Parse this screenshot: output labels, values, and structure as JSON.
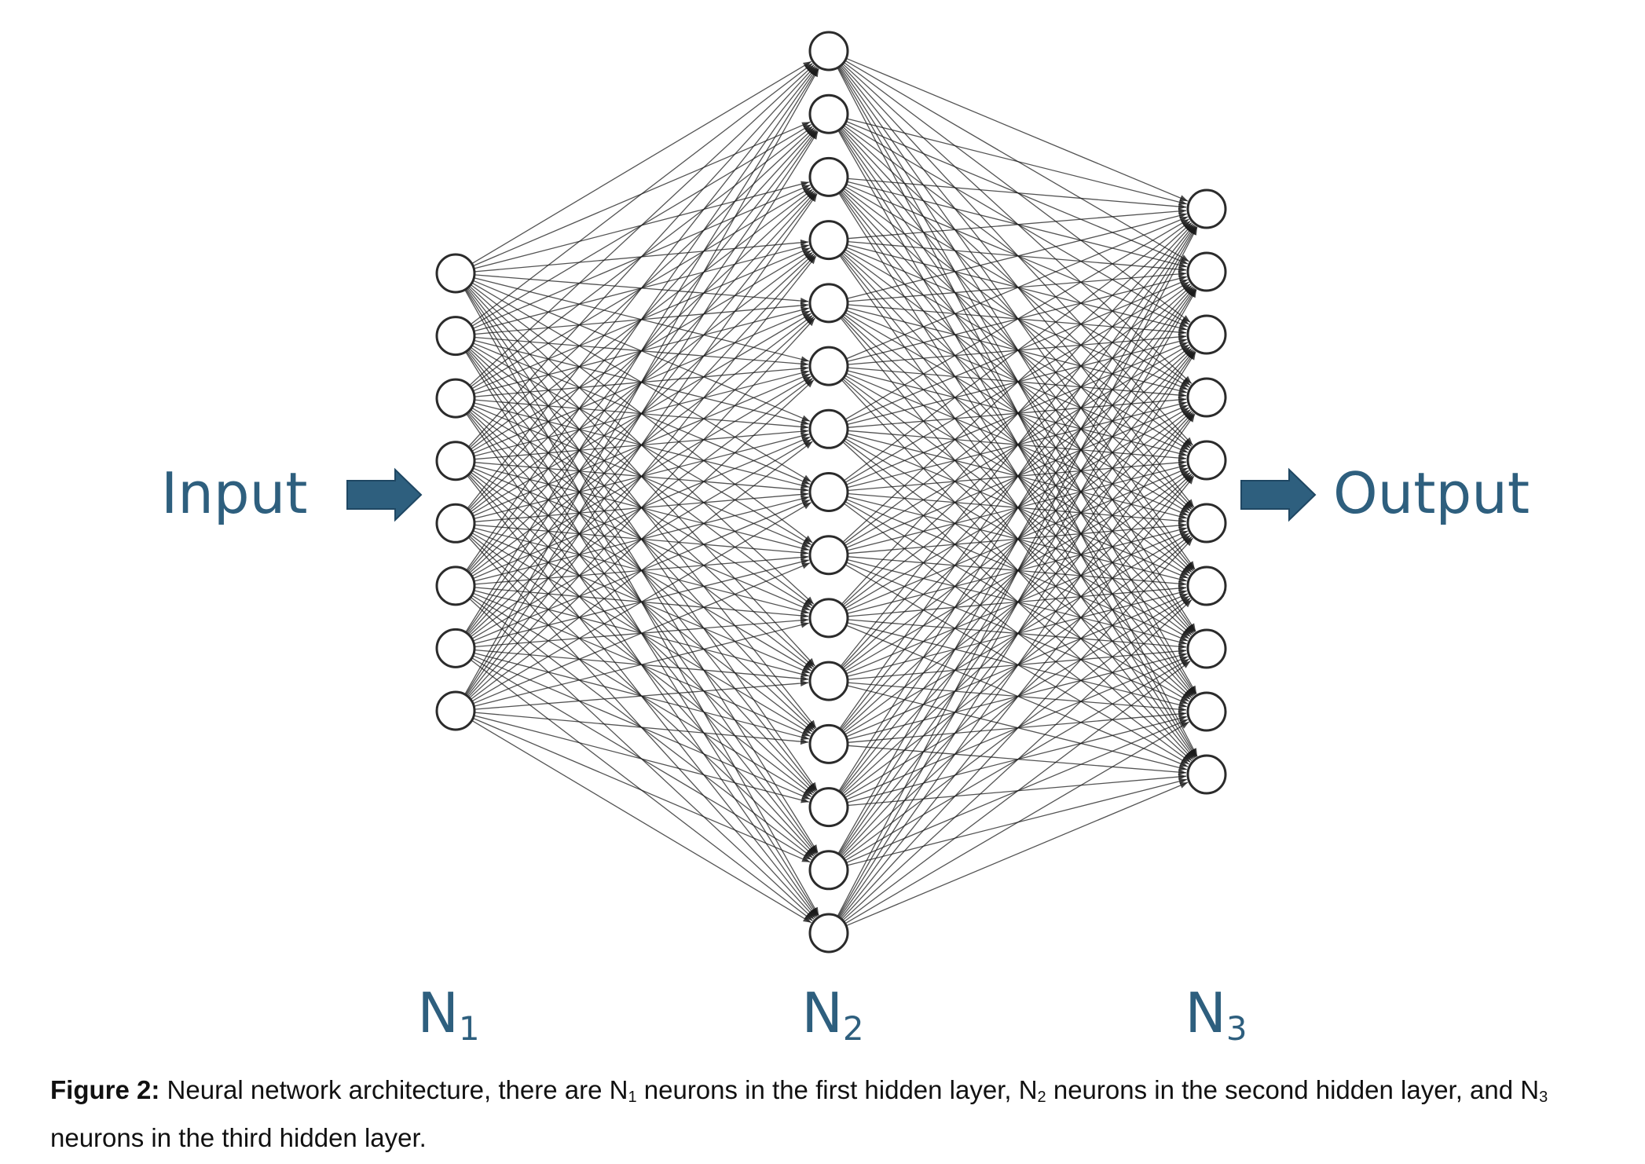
{
  "labels": {
    "input": "Input",
    "output": "Output"
  },
  "layers": [
    {
      "letter": "N",
      "sub": "1",
      "neurons": 8
    },
    {
      "letter": "N",
      "sub": "2",
      "neurons": 15
    },
    {
      "letter": "N",
      "sub": "3",
      "neurons": 10
    }
  ],
  "caption": {
    "lead": "Figure 2:",
    "t1": " Neural network architecture, there are N",
    "s1": "1",
    "t2": " neurons in the first hidden layer, N",
    "s2": "2",
    "t3": " neurons in the second hidden layer, and N",
    "s3": "3",
    "t4": " neurons in the third hidden layer."
  },
  "colors": {
    "accent": "#2e5f7e",
    "edge": "#1a1a1a",
    "node_stroke": "#2b2b2b"
  },
  "icons": {
    "input_arrow": "right-arrow-icon",
    "output_arrow": "right-arrow-icon"
  }
}
